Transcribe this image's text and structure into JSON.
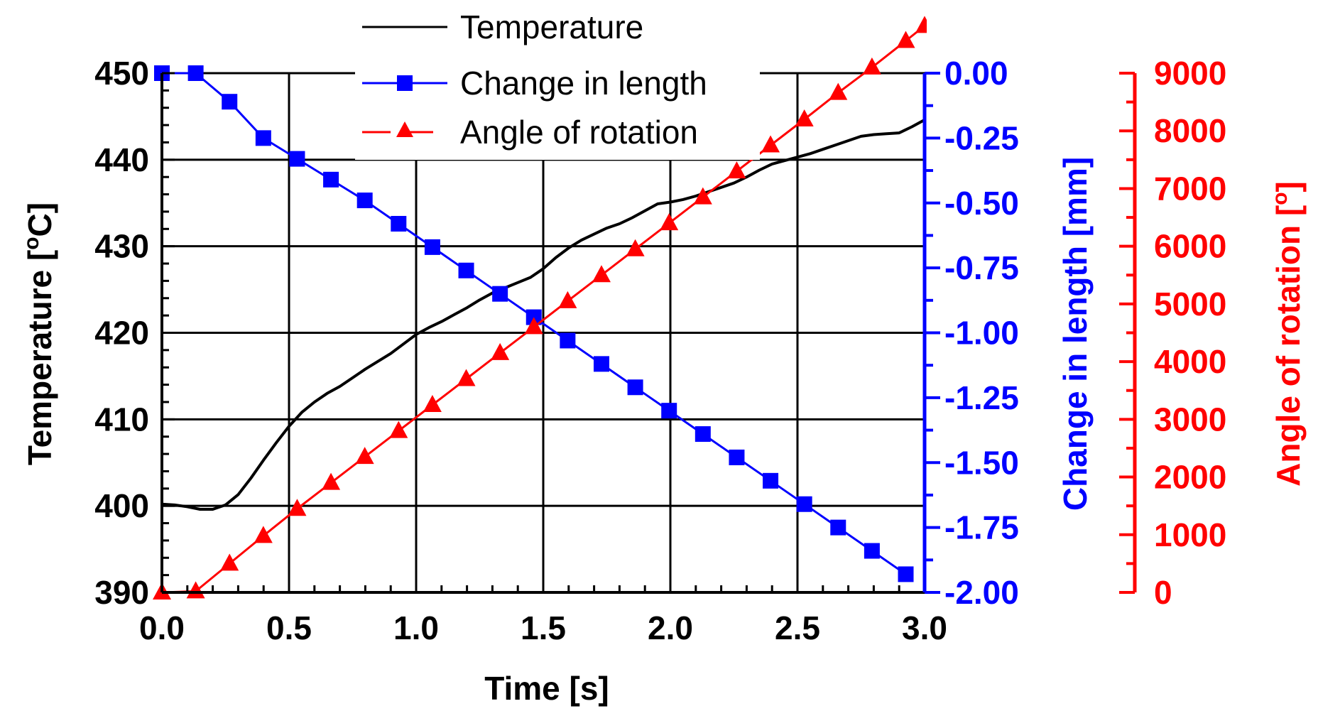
{
  "chart_data": {
    "type": "line",
    "x_axis": {
      "label": "Time [s]",
      "range": [
        0,
        3.0
      ],
      "ticks": [
        "0.0",
        "0.5",
        "1.0",
        "1.5",
        "2.0",
        "2.5",
        "3.0"
      ]
    },
    "y_axes": {
      "temperature": {
        "label": "Temperature [°C]",
        "label_parts": [
          "Temperature [",
          "o",
          "C]"
        ],
        "range": [
          390,
          450
        ],
        "ticks": [
          "390",
          "400",
          "410",
          "420",
          "430",
          "440",
          "450"
        ],
        "color": "#000000",
        "position": "left"
      },
      "length": {
        "label": "Change in length [mm]",
        "range": [
          -2.0,
          0.0
        ],
        "ticks": [
          "-2.00",
          "-1.75",
          "-1.50",
          "-1.25",
          "-1.00",
          "-0.75",
          "-0.50",
          "-0.25",
          "0.00"
        ],
        "color": "#0000ff",
        "position": "right"
      },
      "angle": {
        "label": "Angle of rotation [°]",
        "label_parts": [
          "Angle of rotation [",
          "o",
          "]"
        ],
        "range": [
          0,
          9000
        ],
        "ticks": [
          "0",
          "1000",
          "2000",
          "3000",
          "4000",
          "5000",
          "6000",
          "7000",
          "8000",
          "9000"
        ],
        "color": "#ff0000",
        "position": "far-right"
      }
    },
    "grid": true,
    "legend": {
      "placement": "top-center",
      "entries": [
        "Temperature",
        "Change in length",
        "Angle of rotation"
      ]
    },
    "series": [
      {
        "name": "Temperature",
        "axis": "temperature",
        "color": "#000000",
        "marker": "none",
        "x": [
          0.0,
          0.05,
          0.1,
          0.15,
          0.2,
          0.25,
          0.3,
          0.35,
          0.4,
          0.45,
          0.5,
          0.55,
          0.6,
          0.65,
          0.7,
          0.75,
          0.8,
          0.85,
          0.9,
          0.95,
          1.0,
          1.05,
          1.1,
          1.15,
          1.2,
          1.25,
          1.3,
          1.35,
          1.4,
          1.45,
          1.5,
          1.55,
          1.6,
          1.65,
          1.7,
          1.75,
          1.8,
          1.85,
          1.9,
          1.95,
          2.0,
          2.05,
          2.1,
          2.15,
          2.2,
          2.25,
          2.3,
          2.35,
          2.4,
          2.45,
          2.5,
          2.55,
          2.6,
          2.65,
          2.7,
          2.75,
          2.8,
          2.85,
          2.9,
          2.95,
          3.0
        ],
        "y": [
          400.2,
          400.1,
          399.9,
          399.6,
          399.6,
          400.1,
          401.3,
          403.2,
          405.3,
          407.3,
          409.2,
          410.8,
          412.0,
          413.0,
          413.8,
          414.8,
          415.8,
          416.7,
          417.6,
          418.7,
          419.8,
          420.6,
          421.3,
          422.1,
          422.9,
          423.8,
          424.6,
          425.2,
          425.8,
          426.4,
          427.4,
          428.7,
          429.8,
          430.7,
          431.4,
          432.1,
          432.6,
          433.3,
          434.1,
          434.9,
          435.1,
          435.4,
          435.8,
          436.3,
          436.8,
          437.3,
          438.0,
          438.8,
          439.5,
          439.9,
          440.3,
          440.7,
          441.2,
          441.7,
          442.2,
          442.7,
          442.9,
          443.0,
          443.1,
          443.8,
          444.6
        ]
      },
      {
        "name": "Change in length",
        "axis": "length",
        "color": "#0000ff",
        "marker": "square",
        "x": [
          0.0,
          0.133,
          0.266,
          0.399,
          0.532,
          0.665,
          0.798,
          0.931,
          1.064,
          1.197,
          1.33,
          1.463,
          1.596,
          1.729,
          1.862,
          1.995,
          2.128,
          2.261,
          2.394,
          2.527,
          2.66,
          2.793,
          2.926
        ],
        "y": [
          0.0,
          0.0,
          -0.11,
          -0.25,
          -0.33,
          -0.41,
          -0.49,
          -0.58,
          -0.67,
          -0.76,
          -0.85,
          -0.94,
          -1.03,
          -1.12,
          -1.21,
          -1.3,
          -1.39,
          -1.48,
          -1.57,
          -1.66,
          -1.75,
          -1.84,
          -1.93
        ]
      },
      {
        "name": "Angle of rotation",
        "axis": "angle",
        "color": "#ff0000",
        "marker": "triangle",
        "x": [
          0.0,
          0.133,
          0.266,
          0.399,
          0.532,
          0.665,
          0.798,
          0.931,
          1.064,
          1.197,
          1.33,
          1.463,
          1.596,
          1.729,
          1.862,
          1.995,
          2.128,
          2.261,
          2.394,
          2.527,
          2.66,
          2.793,
          2.926,
          3.0
        ],
        "y": [
          0,
          20,
          500,
          980,
          1450,
          1900,
          2350,
          2800,
          3250,
          3700,
          4150,
          4600,
          5050,
          5500,
          5950,
          6400,
          6850,
          7300,
          7750,
          8200,
          8660,
          9100,
          9560,
          9820
        ]
      }
    ]
  }
}
